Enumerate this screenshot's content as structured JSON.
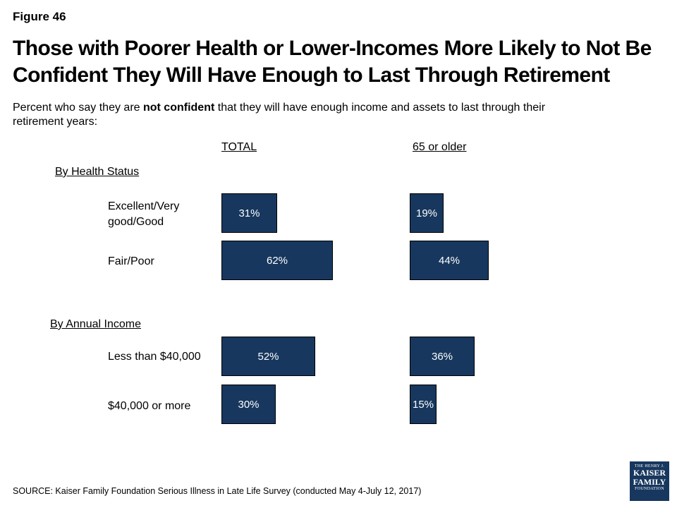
{
  "figure_label": "Figure 46",
  "title": "Those with Poorer Health or Lower-Incomes More Likely to Not Be Confident They Will Have Enough to Last Through Retirement",
  "subtitle_pre": "Percent who say they are ",
  "subtitle_bold": "not confident",
  "subtitle_post": " that they will have enough income and assets to last through their retirement years:",
  "source": "SOURCE: Kaiser Family Foundation Serious Illness in Late Life Survey (conducted May 4-July 12, 2017)",
  "logo": {
    "line1": "THE HENRY J.",
    "line2": "KAISER",
    "line3": "FAMILY",
    "line4": "FOUNDATION"
  },
  "chart_data": {
    "type": "bar",
    "orientation": "horizontal",
    "columns": [
      "TOTAL",
      "65 or older"
    ],
    "groups": [
      {
        "name": "By Health Status",
        "categories": [
          "Excellent/Very good/Good",
          "Fair/Poor"
        ],
        "series": [
          {
            "name": "TOTAL",
            "values": [
              31,
              62
            ],
            "labels": [
              "31%",
              "62%"
            ]
          },
          {
            "name": "65 or older",
            "values": [
              19,
              44
            ],
            "labels": [
              "19%",
              "44%"
            ]
          }
        ]
      },
      {
        "name": "By Annual Income",
        "categories": [
          "Less than $40,000",
          "$40,000 or more"
        ],
        "series": [
          {
            "name": "TOTAL",
            "values": [
              52,
              30
            ],
            "labels": [
              "52%",
              "30%"
            ]
          },
          {
            "name": "65 or older",
            "values": [
              36,
              15
            ],
            "labels": [
              "36%",
              "15%"
            ]
          }
        ]
      }
    ],
    "bar_color": "#17375e",
    "xlim": [
      0,
      100
    ],
    "grid": false,
    "legend": "none"
  }
}
